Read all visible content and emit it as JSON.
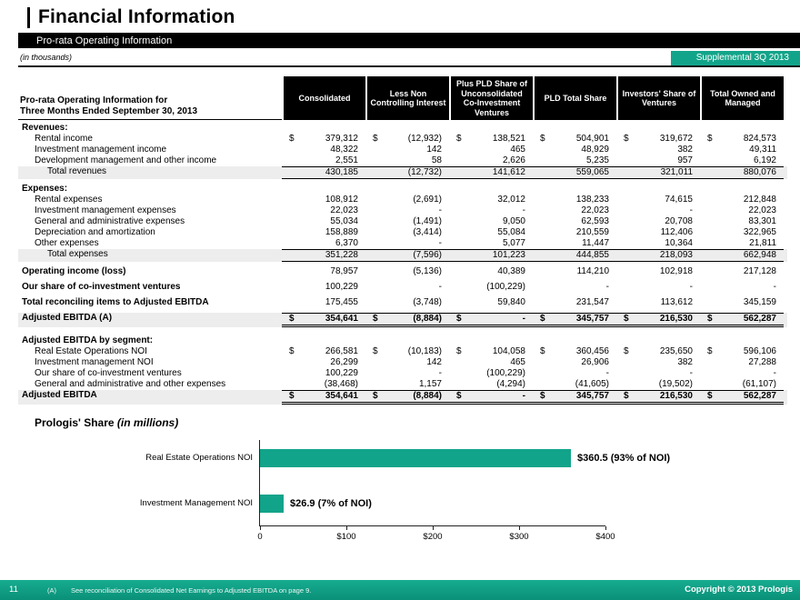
{
  "header": {
    "title": "Financial Information",
    "subtitle": "Pro-rata Operating Information",
    "units_note": "(in thousands)",
    "badge": "Supplemental 3Q 2013"
  },
  "table": {
    "row_header_line1": "Pro-rata Operating Information for",
    "row_header_line2": "Three Months Ended September 30, 2013",
    "columns": [
      "Consolidated",
      "Less Non Controlling Interest",
      "Plus PLD Share of Unconsolidated Co-Investment Ventures",
      "PLD Total Share",
      "Investors' Share of Ventures",
      "Total Owned and Managed"
    ],
    "rows": [
      {
        "kind": "section",
        "label": "Revenues:"
      },
      {
        "kind": "item",
        "indent": 1,
        "dollar": true,
        "label": "Rental income",
        "values": [
          "379,312",
          "(12,932)",
          "138,521",
          "504,901",
          "319,672",
          "824,573"
        ]
      },
      {
        "kind": "item",
        "indent": 1,
        "label": "Investment management income",
        "values": [
          "48,322",
          "142",
          "465",
          "48,929",
          "382",
          "49,311"
        ]
      },
      {
        "kind": "item",
        "indent": 1,
        "label": "Development management and other income",
        "values": [
          "2,551",
          "58",
          "2,626",
          "5,235",
          "957",
          "6,192"
        ]
      },
      {
        "kind": "total",
        "indent": 2,
        "label": "Total revenues",
        "values": [
          "430,185",
          "(12,732)",
          "141,612",
          "559,065",
          "321,011",
          "880,076"
        ]
      },
      {
        "kind": "section",
        "gap": true,
        "label": "Expenses:"
      },
      {
        "kind": "item",
        "indent": 1,
        "label": "Rental expenses",
        "values": [
          "108,912",
          "(2,691)",
          "32,012",
          "138,233",
          "74,615",
          "212,848"
        ]
      },
      {
        "kind": "item",
        "indent": 1,
        "label": "Investment management expenses",
        "values": [
          "22,023",
          "-",
          "-",
          "22,023",
          "-",
          "22,023"
        ]
      },
      {
        "kind": "item",
        "indent": 1,
        "label": "General and administrative expenses",
        "values": [
          "55,034",
          "(1,491)",
          "9,050",
          "62,593",
          "20,708",
          "83,301"
        ]
      },
      {
        "kind": "item",
        "indent": 1,
        "label": "Depreciation and amortization",
        "values": [
          "158,889",
          "(3,414)",
          "55,084",
          "210,559",
          "112,406",
          "322,965"
        ]
      },
      {
        "kind": "item",
        "indent": 1,
        "label": "Other expenses",
        "values": [
          "6,370",
          "-",
          "5,077",
          "11,447",
          "10,364",
          "21,811"
        ]
      },
      {
        "kind": "total",
        "indent": 2,
        "label": "Total expenses",
        "values": [
          "351,228",
          "(7,596)",
          "101,223",
          "444,855",
          "218,093",
          "662,948"
        ]
      },
      {
        "kind": "strong",
        "gap": true,
        "label": "Operating income (loss)",
        "values": [
          "78,957",
          "(5,136)",
          "40,389",
          "114,210",
          "102,918",
          "217,128"
        ]
      },
      {
        "kind": "strong",
        "gap": true,
        "label": "Our share of co-investment ventures",
        "values": [
          "100,229",
          "-",
          "(100,229)",
          "-",
          "-",
          "-"
        ]
      },
      {
        "kind": "strong",
        "gap": true,
        "label": "Total reconciling items to Adjusted EBITDA",
        "values": [
          "175,455",
          "(3,748)",
          "59,840",
          "231,547",
          "113,612",
          "345,159"
        ]
      },
      {
        "kind": "grand",
        "gap": true,
        "dollar": true,
        "label": "Adjusted EBITDA (A)",
        "values": [
          "354,641",
          "(8,884)",
          "-",
          "345,757",
          "216,530",
          "562,287"
        ]
      },
      {
        "kind": "spacer"
      },
      {
        "kind": "section",
        "label": "Adjusted EBITDA by segment:"
      },
      {
        "kind": "item",
        "indent": 1,
        "dollar": true,
        "label": "Real Estate Operations NOI",
        "values": [
          "266,581",
          "(10,183)",
          "104,058",
          "360,456",
          "235,650",
          "596,106"
        ]
      },
      {
        "kind": "item",
        "indent": 1,
        "label": "Investment management NOI",
        "values": [
          "26,299",
          "142",
          "465",
          "26,906",
          "382",
          "27,288"
        ]
      },
      {
        "kind": "item",
        "indent": 1,
        "label": "Our share of co-investment ventures",
        "values": [
          "100,229",
          "-",
          "(100,229)",
          "-",
          "-",
          "-"
        ]
      },
      {
        "kind": "item",
        "indent": 1,
        "label": "General and administrative and other expenses",
        "values": [
          "(38,468)",
          "1,157",
          "(4,294)",
          "(41,605)",
          "(19,502)",
          "(61,107)"
        ]
      },
      {
        "kind": "grand",
        "dollar": true,
        "label": "Adjusted EBITDA",
        "values": [
          "354,641",
          "(8,884)",
          "-",
          "345,757",
          "216,530",
          "562,287"
        ]
      }
    ]
  },
  "chart_data": {
    "type": "bar",
    "orientation": "horizontal",
    "title": "Prologis' Share",
    "title_note": "(in millions)",
    "categories": [
      "Real Estate Operations NOI",
      "Investment Management NOI"
    ],
    "values": [
      360.5,
      26.9
    ],
    "bar_labels": [
      "$360.5 (93% of NOI)",
      "$26.9 (7% of NOI)"
    ],
    "xlim": [
      0,
      400
    ],
    "x_ticks": [
      {
        "value": 0,
        "label": "0"
      },
      {
        "value": 100,
        "label": "$100"
      },
      {
        "value": 200,
        "label": "$200"
      },
      {
        "value": 300,
        "label": "$300"
      },
      {
        "value": 400,
        "label": "$400"
      }
    ],
    "bar_color": "#12A48A",
    "grid": false,
    "legend": false
  },
  "footer": {
    "page_number": "11",
    "footnote_marker": "(A)",
    "footnote": "See reconciliation of Consolidated Net Earnings to Adjusted EBITDA on page 9.",
    "copyright": "Copyright © 2013 Prologis"
  },
  "colors": {
    "accent_teal": "#12A48A",
    "table_header_bg": "#000000",
    "shaded_row": "#EDEDED"
  }
}
